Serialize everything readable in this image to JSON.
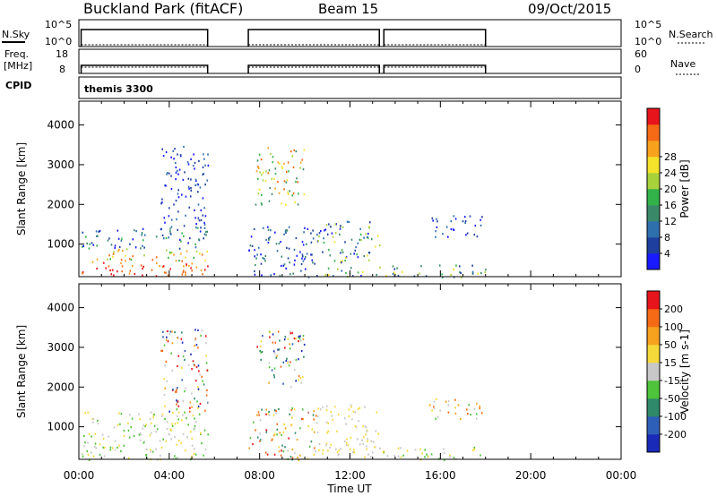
{
  "header": {
    "title": "Buckland Park (fitACF)",
    "beam": "Beam 15",
    "date": "09/Oct/2015"
  },
  "summary_panels": {
    "nsky_label": "N.Sky",
    "nsky_ticks": [
      "10^5",
      "10^0"
    ],
    "nsearch_label": "N.Search",
    "nsearch_ticks": [
      "10^5",
      "10^0"
    ],
    "freq_label_line1": "Freq.",
    "freq_label_line2": "[MHz]",
    "freq_ticks": [
      "18",
      "8"
    ],
    "nave_label": "Nave",
    "nave_ticks": [
      "60",
      "0"
    ],
    "cpid_label": "CPID",
    "cpid_value": "themis 3300"
  },
  "chart_data": [
    {
      "type": "heatmap",
      "name": "power",
      "ylabel": "Slant Range [km]",
      "yticks": [
        1000,
        2000,
        3000,
        4000
      ],
      "ylim": [
        180,
        4600
      ],
      "xlim_hours": [
        0,
        24
      ],
      "colorbar": {
        "label": "Power [dB]",
        "ticks": [
          "4",
          "8",
          "12",
          "16",
          "20",
          "24",
          "28"
        ],
        "colors": [
          "#1a1aff",
          "#1f3f9f",
          "#2e6fae",
          "#3a8a6a",
          "#32b34a",
          "#a8d23a",
          "#f5e22a",
          "#f8a21e",
          "#f56a14",
          "#e8141c"
        ]
      },
      "regions": [
        {
          "t": [
            0.1,
            5.7
          ],
          "r": [
            180,
            600
          ],
          "c": [
            7,
            9
          ]
        },
        {
          "t": [
            0.1,
            5.7
          ],
          "r": [
            600,
            900
          ],
          "c": [
            4,
            8
          ]
        },
        {
          "t": [
            0.1,
            5.7
          ],
          "r": [
            900,
            1450
          ],
          "c": [
            0,
            4
          ]
        },
        {
          "t": [
            3.6,
            5.7
          ],
          "r": [
            1400,
            3500
          ],
          "c": [
            0,
            2
          ]
        },
        {
          "t": [
            7.8,
            10.0
          ],
          "r": [
            2000,
            3450
          ],
          "c": [
            3,
            8
          ]
        },
        {
          "t": [
            7.5,
            10.5
          ],
          "r": [
            180,
            1500
          ],
          "c": [
            0,
            3
          ]
        },
        {
          "t": [
            10.5,
            13.3
          ],
          "r": [
            200,
            1600
          ],
          "c": [
            0,
            6
          ]
        },
        {
          "t": [
            13.3,
            18.0
          ],
          "r": [
            180,
            500
          ],
          "c": [
            1,
            6
          ]
        },
        {
          "t": [
            15.5,
            17.9
          ],
          "r": [
            1200,
            1750
          ],
          "c": [
            0,
            2
          ]
        }
      ]
    },
    {
      "type": "heatmap",
      "name": "velocity",
      "ylabel": "Slant Range [km]",
      "xlabel": "Time UT",
      "xticks": [
        "00:00",
        "04:00",
        "08:00",
        "12:00",
        "16:00",
        "20:00",
        "00:00"
      ],
      "yticks": [
        1000,
        2000,
        3000,
        4000
      ],
      "ylim": [
        180,
        4600
      ],
      "xlim_hours": [
        0,
        24
      ],
      "colorbar": {
        "label": "Velocity [m s-1]",
        "ticks": [
          "200",
          "100",
          "50",
          "15",
          "-15",
          "-50",
          "-100",
          "-200"
        ],
        "colors": [
          "#1a2ab8",
          "#2e5fb8",
          "#2e8a6a",
          "#4ec43a",
          "#c8c8c8",
          "#f5d93a",
          "#f5a21e",
          "#f56a14",
          "#e8141c"
        ]
      },
      "regions": [
        {
          "t": [
            0.1,
            5.7
          ],
          "r": [
            180,
            1400
          ],
          "c": [
            3,
            5
          ]
        },
        {
          "t": [
            3.6,
            5.7
          ],
          "r": [
            1400,
            3500
          ],
          "c": [
            0,
            8
          ]
        },
        {
          "t": [
            7.8,
            10.0
          ],
          "r": [
            2000,
            3450
          ],
          "c": [
            0,
            8
          ]
        },
        {
          "t": [
            7.5,
            10.5
          ],
          "r": [
            180,
            1500
          ],
          "c": [
            2,
            8
          ]
        },
        {
          "t": [
            10.5,
            13.3
          ],
          "r": [
            200,
            1600
          ],
          "c": [
            4,
            5
          ]
        },
        {
          "t": [
            13.3,
            18.0
          ],
          "r": [
            180,
            500
          ],
          "c": [
            3,
            5
          ]
        },
        {
          "t": [
            15.5,
            17.9
          ],
          "r": [
            1200,
            1750
          ],
          "c": [
            3,
            7
          ]
        }
      ]
    }
  ],
  "operating_intervals_hours": [
    [
      0.1,
      5.7
    ],
    [
      7.5,
      13.3
    ],
    [
      13.5,
      18.0
    ]
  ]
}
